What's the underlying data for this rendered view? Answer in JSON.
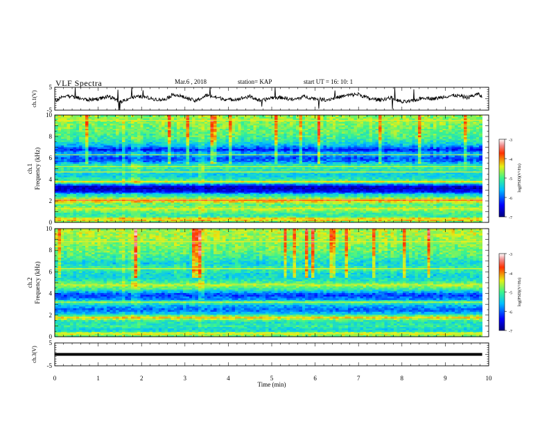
{
  "header": {
    "title": "VLF Spectra",
    "date": "Mar.6 , 2018",
    "station": "station= KAP",
    "start": "start UT = 16: 10: 1"
  },
  "chart_data": [
    {
      "type": "line",
      "title": "",
      "ylabel": "ch.1(V)",
      "ylim": [
        -5,
        5
      ],
      "y_ticks": [
        "5",
        "-5"
      ],
      "xlim": [
        0,
        10
      ],
      "x_range_data": [
        0,
        9.85
      ],
      "series": [
        {
          "name": "",
          "x": [
            0,
            0.25,
            0.5,
            0.75,
            1,
            1.25,
            1.5,
            1.75,
            2,
            2.25,
            2.5,
            2.75,
            3,
            3.25,
            3.5,
            3.75,
            4,
            4.25,
            4.5,
            4.75,
            5,
            5.25,
            5.5,
            5.75,
            6,
            6.25,
            6.5,
            6.75,
            7,
            7.25,
            7.5,
            7.75,
            8,
            8.25,
            8.5,
            8.75,
            9,
            9.25,
            9.5,
            9.75,
            9.85
          ],
          "y": [
            -1,
            1.5,
            0.5,
            -0.5,
            0,
            1,
            -1.5,
            0.5,
            1,
            0,
            -0.5,
            2,
            0.5,
            -1,
            1.5,
            0.5,
            -0.5,
            0,
            1,
            -1,
            0.5,
            0.5,
            -0.5,
            1,
            0,
            -0.5,
            0.5,
            1.5,
            2,
            0,
            -0.5,
            0.5,
            -1.5,
            -1,
            0.5,
            0,
            1,
            1.5,
            0.5,
            2,
            1
          ]
        }
      ]
    },
    {
      "type": "heatmap",
      "title": "",
      "ylabel": "ch.1",
      "ylabel2": "Frequency (kHz)",
      "ylim": [
        0,
        10
      ],
      "y_ticks": [
        "0",
        "2",
        "4",
        "6",
        "8",
        "10"
      ],
      "xlim": [
        0,
        10
      ],
      "x_range_data": [
        0,
        9.85
      ],
      "colorbar": {
        "label": "log(PSD)(V²/Hz)",
        "range": [
          -7,
          -3
        ],
        "ticks": [
          "-3",
          "-4",
          "-5",
          "-6",
          "-7"
        ]
      },
      "freq_profile_log_psd": [
        {
          "f": 0.0,
          "v": -5.0
        },
        {
          "f": 0.3,
          "v": -4.0
        },
        {
          "f": 0.6,
          "v": -5.2
        },
        {
          "f": 1.0,
          "v": -4.9
        },
        {
          "f": 1.3,
          "v": -4.5
        },
        {
          "f": 1.6,
          "v": -5.0
        },
        {
          "f": 1.9,
          "v": -4.6
        },
        {
          "f": 2.1,
          "v": -3.6
        },
        {
          "f": 2.3,
          "v": -4.9
        },
        {
          "f": 2.6,
          "v": -5.3
        },
        {
          "f": 2.9,
          "v": -6.4
        },
        {
          "f": 3.3,
          "v": -6.8
        },
        {
          "f": 3.6,
          "v": -5.6
        },
        {
          "f": 3.8,
          "v": -4.3
        },
        {
          "f": 4.0,
          "v": -5.1
        },
        {
          "f": 4.4,
          "v": -5.5
        },
        {
          "f": 4.9,
          "v": -5.2
        },
        {
          "f": 5.3,
          "v": -5.0
        },
        {
          "f": 5.7,
          "v": -5.9
        },
        {
          "f": 6.0,
          "v": -6.1
        },
        {
          "f": 6.4,
          "v": -5.5
        },
        {
          "f": 6.8,
          "v": -6.3
        },
        {
          "f": 7.2,
          "v": -5.6
        },
        {
          "f": 7.6,
          "v": -5.2
        },
        {
          "f": 8.0,
          "v": -5.0
        },
        {
          "f": 8.5,
          "v": -4.9
        },
        {
          "f": 9.0,
          "v": -4.8
        },
        {
          "f": 9.5,
          "v": -4.7
        },
        {
          "f": 10.0,
          "v": -4.7
        }
      ],
      "tone_lines_khz": [
        0.25,
        1.25,
        2.1,
        3.8,
        4.7,
        5.2,
        6.3,
        9.5
      ],
      "bright_time_bands_min": [
        [
          0.95,
          1.0
        ],
        [
          1.55,
          1.6
        ],
        [
          1.75,
          1.95
        ],
        [
          3.3,
          3.45
        ]
      ]
    },
    {
      "type": "heatmap",
      "title": "",
      "ylabel": "ch.2",
      "ylabel2": "Frequency (kHz)",
      "ylim": [
        0,
        10
      ],
      "y_ticks": [
        "0",
        "2",
        "4",
        "6",
        "8",
        "10"
      ],
      "xlim": [
        0,
        10
      ],
      "x_range_data": [
        0,
        9.85
      ],
      "colorbar": {
        "label": "log(PSD)(V²/Hz)",
        "range": [
          -7,
          -3
        ],
        "ticks": [
          "-3",
          "-4",
          "-5",
          "-6",
          "-7"
        ]
      },
      "freq_profile_log_psd": [
        {
          "f": 0.0,
          "v": -5.0
        },
        {
          "f": 0.3,
          "v": -4.4
        },
        {
          "f": 0.6,
          "v": -5.5
        },
        {
          "f": 1.0,
          "v": -5.1
        },
        {
          "f": 1.4,
          "v": -5.3
        },
        {
          "f": 1.8,
          "v": -4.2
        },
        {
          "f": 2.1,
          "v": -5.4
        },
        {
          "f": 2.5,
          "v": -6.0
        },
        {
          "f": 2.9,
          "v": -5.6
        },
        {
          "f": 3.2,
          "v": -4.9
        },
        {
          "f": 3.5,
          "v": -5.8
        },
        {
          "f": 3.9,
          "v": -6.2
        },
        {
          "f": 4.4,
          "v": -5.1
        },
        {
          "f": 4.8,
          "v": -4.6
        },
        {
          "f": 5.3,
          "v": -5.3
        },
        {
          "f": 5.8,
          "v": -5.4
        },
        {
          "f": 6.3,
          "v": -5.0
        },
        {
          "f": 6.8,
          "v": -5.4
        },
        {
          "f": 7.3,
          "v": -5.1
        },
        {
          "f": 7.8,
          "v": -4.9
        },
        {
          "f": 8.3,
          "v": -4.8
        },
        {
          "f": 8.8,
          "v": -4.7
        },
        {
          "f": 9.3,
          "v": -4.6
        },
        {
          "f": 10.0,
          "v": -4.6
        }
      ],
      "tone_lines_khz": [
        0.3,
        1.8,
        3.2,
        4.8,
        6.3,
        8.8
      ],
      "bright_time_bands_min": [
        [
          0.95,
          1.0
        ],
        [
          1.55,
          1.6
        ],
        [
          1.75,
          1.95
        ],
        [
          3.3,
          3.45
        ]
      ]
    },
    {
      "type": "line",
      "title": "",
      "xlabel": "Time (min)",
      "ylabel": "ch.3(V)",
      "ylim": [
        -5,
        5
      ],
      "y_ticks": [
        "5",
        "-5"
      ],
      "xlim": [
        0,
        10
      ],
      "x_ticks": [
        "0",
        "1",
        "2",
        "3",
        "4",
        "5",
        "6",
        "7",
        "8",
        "9",
        "10"
      ],
      "series": [
        {
          "name": "",
          "x": [
            0,
            9.85
          ],
          "y": [
            0,
            0
          ]
        }
      ]
    }
  ]
}
